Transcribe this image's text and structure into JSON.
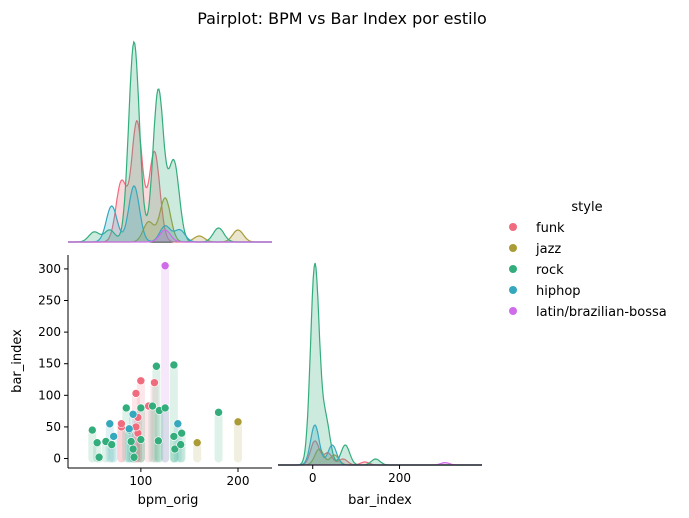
{
  "chart_data": {
    "type": "pairplot",
    "title": "Pairplot: BPM vs Bar Index por estilo",
    "legend": {
      "title": "style",
      "placement": "right",
      "entries": [
        {
          "name": "funk",
          "color": "#f06b7d"
        },
        {
          "name": "jazz",
          "color": "#ab9b37"
        },
        {
          "name": "rock",
          "color": "#33ad7c"
        },
        {
          "name": "hiphop",
          "color": "#36a8be"
        },
        {
          "name": "latin/brazilian-bossa",
          "color": "#cf6ce9"
        }
      ]
    },
    "panels": [
      {
        "id": "bpm_kde",
        "type": "kde",
        "variable": "bpm_orig",
        "xlim": [
          25,
          235
        ],
        "series": [
          {
            "name": "funk",
            "peaks": [
              [
                80,
                0.3
              ],
              [
                96,
                0.6
              ],
              [
                114,
                0.45
              ]
            ]
          },
          {
            "name": "jazz",
            "peaks": [
              [
                108,
                0.1
              ],
              [
                125,
                0.22
              ],
              [
                160,
                0.03
              ],
              [
                200,
                0.06
              ]
            ]
          },
          {
            "name": "rock",
            "peaks": [
              [
                52,
                0.05
              ],
              [
                68,
                0.06
              ],
              [
                93,
                1.0
              ],
              [
                118,
                0.76
              ],
              [
                134,
                0.4
              ],
              [
                180,
                0.07
              ]
            ]
          },
          {
            "name": "hiphop",
            "peaks": [
              [
                70,
                0.18
              ],
              [
                93,
                0.28
              ],
              [
                125,
                0.08
              ],
              [
                140,
                0.06
              ]
            ]
          },
          {
            "name": "latin/brazilian-bossa",
            "peaks": [
              [
                125,
                0.06
              ]
            ]
          }
        ]
      },
      {
        "id": "bpm_vs_bar_index",
        "type": "scatter",
        "xlabel": "bpm_orig",
        "ylabel": "bar_index",
        "xlim": [
          25,
          235
        ],
        "ylim": [
          -15,
          322
        ],
        "xticks": [
          100,
          200
        ],
        "yticks": [
          0,
          50,
          100,
          150,
          200,
          250,
          300
        ],
        "points": [
          {
            "style": "funk",
            "x": 80,
            "y": 50
          },
          {
            "style": "funk",
            "x": 80,
            "y": 55
          },
          {
            "style": "funk",
            "x": 95,
            "y": 103
          },
          {
            "style": "funk",
            "x": 97,
            "y": 65
          },
          {
            "style": "funk",
            "x": 97,
            "y": 40
          },
          {
            "style": "funk",
            "x": 100,
            "y": 123
          },
          {
            "style": "funk",
            "x": 108,
            "y": 83
          },
          {
            "style": "funk",
            "x": 114,
            "y": 120
          },
          {
            "style": "funk",
            "x": 95,
            "y": 50
          },
          {
            "style": "jazz",
            "x": 158,
            "y": 25
          },
          {
            "style": "jazz",
            "x": 200,
            "y": 58
          },
          {
            "style": "rock",
            "x": 50,
            "y": 45
          },
          {
            "style": "rock",
            "x": 55,
            "y": 25
          },
          {
            "style": "rock",
            "x": 57,
            "y": 2
          },
          {
            "style": "rock",
            "x": 64,
            "y": 27
          },
          {
            "style": "rock",
            "x": 70,
            "y": 22
          },
          {
            "style": "rock",
            "x": 85,
            "y": 80
          },
          {
            "style": "rock",
            "x": 88,
            "y": 45
          },
          {
            "style": "rock",
            "x": 90,
            "y": 27
          },
          {
            "style": "rock",
            "x": 92,
            "y": 15
          },
          {
            "style": "rock",
            "x": 93,
            "y": 2
          },
          {
            "style": "rock",
            "x": 100,
            "y": 80
          },
          {
            "style": "rock",
            "x": 100,
            "y": 30
          },
          {
            "style": "rock",
            "x": 112,
            "y": 83
          },
          {
            "style": "rock",
            "x": 116,
            "y": 146
          },
          {
            "style": "rock",
            "x": 119,
            "y": 76
          },
          {
            "style": "rock",
            "x": 118,
            "y": 28
          },
          {
            "style": "rock",
            "x": 125,
            "y": 80
          },
          {
            "style": "rock",
            "x": 134,
            "y": 148
          },
          {
            "style": "rock",
            "x": 134,
            "y": 35
          },
          {
            "style": "rock",
            "x": 135,
            "y": 15
          },
          {
            "style": "rock",
            "x": 142,
            "y": 40
          },
          {
            "style": "rock",
            "x": 141,
            "y": 22
          },
          {
            "style": "rock",
            "x": 180,
            "y": 73
          },
          {
            "style": "hiphop",
            "x": 68,
            "y": 55
          },
          {
            "style": "hiphop",
            "x": 72,
            "y": 35
          },
          {
            "style": "hiphop",
            "x": 88,
            "y": 47
          },
          {
            "style": "hiphop",
            "x": 92,
            "y": 70
          },
          {
            "style": "hiphop",
            "x": 138,
            "y": 55
          },
          {
            "style": "latin/brazilian-bossa",
            "x": 125,
            "y": 305
          }
        ]
      },
      {
        "id": "bar_index_kde",
        "type": "kde",
        "xlabel": "bar_index",
        "xlim": [
          -80,
          390
        ],
        "xticks": [
          0,
          200
        ],
        "series": [
          {
            "name": "funk",
            "peaks": [
              [
                5,
                0.12
              ],
              [
                35,
                0.06
              ],
              [
                70,
                0.03
              ],
              [
                120,
                0.015
              ]
            ]
          },
          {
            "name": "jazz",
            "peaks": [
              [
                15,
                0.08
              ],
              [
                50,
                0.05
              ]
            ]
          },
          {
            "name": "rock",
            "peaks": [
              [
                5,
                1.0
              ],
              [
                30,
                0.22
              ],
              [
                75,
                0.1
              ],
              [
                145,
                0.03
              ]
            ]
          },
          {
            "name": "hiphop",
            "peaks": [
              [
                5,
                0.2
              ],
              [
                45,
                0.1
              ]
            ]
          },
          {
            "name": "latin/brazilian-bossa",
            "peaks": [
              [
                305,
                0.012
              ]
            ]
          }
        ]
      }
    ]
  }
}
